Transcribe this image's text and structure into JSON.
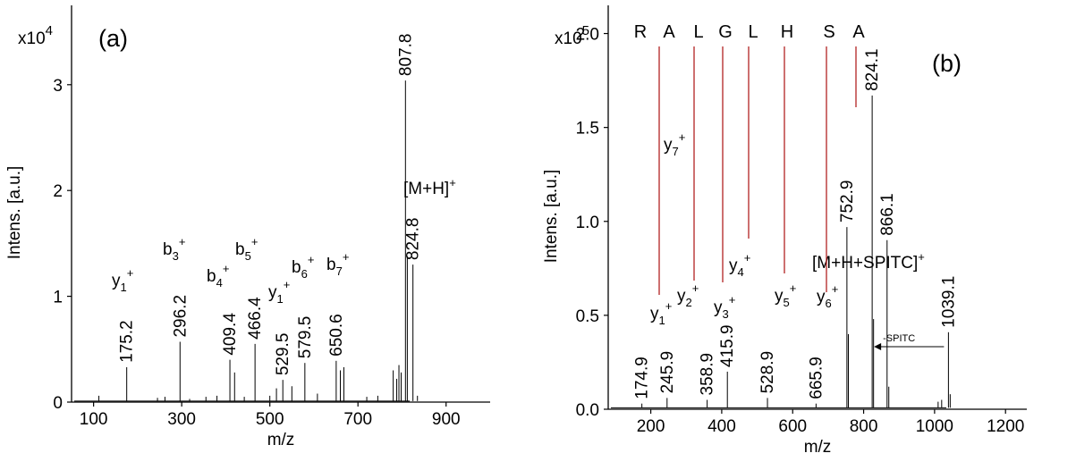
{
  "chart_data": [
    {
      "type": "bar",
      "panel": "(a)",
      "xlabel": "m/z",
      "ylabel": "Intens. [a.u.]",
      "y_multiplier": "x10",
      "y_multiplier_exp": "4",
      "xlim": [
        50,
        1000
      ],
      "ylim": [
        0,
        3.75
      ],
      "xticks": [
        100,
        300,
        500,
        700,
        900
      ],
      "yticks": [
        0,
        1,
        2,
        3
      ],
      "baseline": 0.01,
      "peaks": [
        {
          "x": 175.2,
          "y": 0.33,
          "label": "175.2",
          "ion": "y",
          "ion_sub": "1",
          "ion_sup": "+"
        },
        {
          "x": 296.2,
          "y": 0.57,
          "label": "296.2",
          "ion": "b",
          "ion_sub": "3",
          "ion_sup": "+"
        },
        {
          "x": 409.4,
          "y": 0.4,
          "label": "409.4",
          "ion": "b",
          "ion_sub": "4",
          "ion_sup": "+"
        },
        {
          "x": 466.4,
          "y": 0.55,
          "label": "466.4",
          "ion": "b",
          "ion_sub": "5",
          "ion_sup": "+"
        },
        {
          "x": 529.5,
          "y": 0.21,
          "label": "529.5",
          "ion": "y",
          "ion_sub": "1",
          "ion_sup": "+"
        },
        {
          "x": 579.5,
          "y": 0.37,
          "label": "579.5",
          "ion": "b",
          "ion_sub": "6",
          "ion_sup": "+"
        },
        {
          "x": 650.6,
          "y": 0.39,
          "label": "650.6",
          "ion": "b",
          "ion_sub": "7",
          "ion_sup": "+"
        },
        {
          "x": 807.8,
          "y": 3.04,
          "label": "807.8"
        },
        {
          "x": 824.8,
          "y": 1.3,
          "label": "824.8",
          "ion": "[M+H]",
          "ion_sup": "+"
        }
      ],
      "minor_peaks": [
        {
          "x": 112,
          "y": 0.06
        },
        {
          "x": 245,
          "y": 0.04
        },
        {
          "x": 262,
          "y": 0.05
        },
        {
          "x": 318,
          "y": 0.03
        },
        {
          "x": 355,
          "y": 0.05
        },
        {
          "x": 380,
          "y": 0.06
        },
        {
          "x": 420,
          "y": 0.28
        },
        {
          "x": 442,
          "y": 0.05
        },
        {
          "x": 500,
          "y": 0.06
        },
        {
          "x": 515,
          "y": 0.13
        },
        {
          "x": 550,
          "y": 0.15
        },
        {
          "x": 608,
          "y": 0.08
        },
        {
          "x": 660,
          "y": 0.3
        },
        {
          "x": 668,
          "y": 0.33
        },
        {
          "x": 720,
          "y": 0.05
        },
        {
          "x": 745,
          "y": 0.06
        },
        {
          "x": 780,
          "y": 0.3
        },
        {
          "x": 788,
          "y": 0.22
        },
        {
          "x": 793,
          "y": 0.35
        },
        {
          "x": 798,
          "y": 0.28
        },
        {
          "x": 812,
          "y": 1.38
        },
        {
          "x": 835,
          "y": 0.06
        }
      ]
    },
    {
      "type": "bar",
      "panel": "(b)",
      "xlabel": "m/z",
      "ylabel": "Intens. [a.u.]",
      "y_multiplier": "x10",
      "y_multiplier_exp": "5",
      "xlim": [
        80,
        1260
      ],
      "ylim": [
        0,
        2.15
      ],
      "xticks": [
        200,
        400,
        600,
        800,
        1000,
        1200
      ],
      "yticks": [
        "0.0",
        "0.5",
        "1.0",
        "1.5",
        "2.0"
      ],
      "baseline": 0.008,
      "sequence": [
        "R",
        "A",
        "L",
        "G",
        "L",
        "H",
        "S",
        "A"
      ],
      "peaks": [
        {
          "x": 174.9,
          "y": 0.03,
          "label": "174.9",
          "ion": "y",
          "ion_sub": "1",
          "ion_sup": "+"
        },
        {
          "x": 245.9,
          "y": 0.06,
          "label": "245.9",
          "ion": "y",
          "ion_sub": "2",
          "ion_sup": "+"
        },
        {
          "x": 358.9,
          "y": 0.05,
          "label": "358.9",
          "ion": "y",
          "ion_sub": "3",
          "ion_sup": "+"
        },
        {
          "x": 415.9,
          "y": 0.2,
          "label": "415.9",
          "ion": "y",
          "ion_sub": "4",
          "ion_sup": "+"
        },
        {
          "x": 528.9,
          "y": 0.06,
          "label": "528.9",
          "ion": "y",
          "ion_sub": "5",
          "ion_sup": "+"
        },
        {
          "x": 665.9,
          "y": 0.03,
          "label": "665.9",
          "ion": "y",
          "ion_sub": "6",
          "ion_sup": "+"
        },
        {
          "x": 752.9,
          "y": 0.97,
          "label": "752.9",
          "ion": "y",
          "ion_sub": "7",
          "ion_sup": "+"
        },
        {
          "x": 824.1,
          "y": 1.67,
          "label": "824.1"
        },
        {
          "x": 866.1,
          "y": 0.9,
          "label": "866.1",
          "ion": "[M+H+SPITC]",
          "ion_sup": "+"
        },
        {
          "x": 1039.1,
          "y": 0.41,
          "label": "1039.1"
        }
      ],
      "minor_peaks": [
        {
          "x": 757,
          "y": 0.4
        },
        {
          "x": 828,
          "y": 0.48
        },
        {
          "x": 871,
          "y": 0.12
        },
        {
          "x": 1010,
          "y": 0.04
        },
        {
          "x": 1020,
          "y": 0.05
        },
        {
          "x": 1044,
          "y": 0.08
        }
      ],
      "annotation": {
        "text": "-SPITC",
        "from_x": 1039.1,
        "to_x": 824.1,
        "y": 0.31
      }
    }
  ]
}
